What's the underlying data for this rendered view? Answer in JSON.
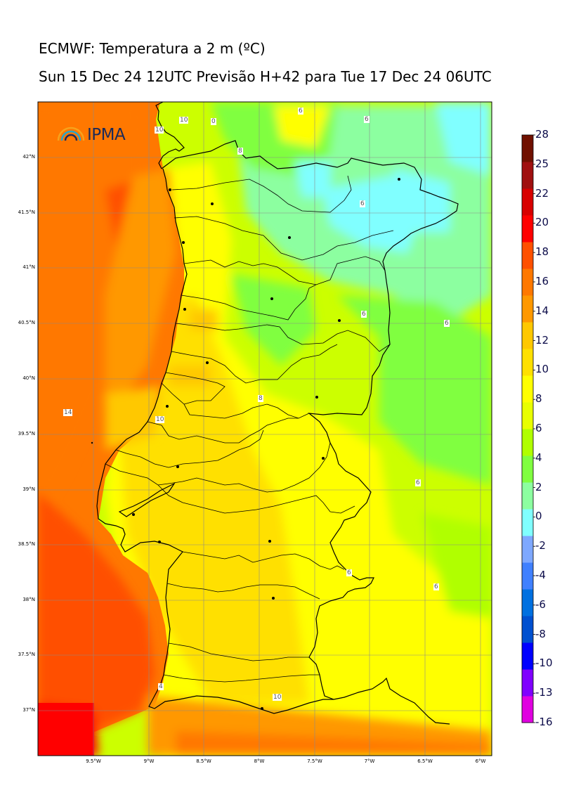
{
  "header": {
    "title": "ECMWF: Temperatura a 2 m (ºC)",
    "subtitle": "Sun 15 Dec 24 12UTC Previsão H+42 para Tue 17 Dec 24 06UTC"
  },
  "logo": {
    "text": "IPMA",
    "icon": "rainbow-arcs-icon"
  },
  "map": {
    "lat_labels": [
      "42°N",
      "41.5°N",
      "41°N",
      "40.5°N",
      "40°N",
      "39.5°N",
      "39°N",
      "38.5°N",
      "38°N",
      "37.5°N",
      "37°N"
    ],
    "lon_labels": [
      "9.5°W",
      "9°W",
      "8.5°W",
      "8°W",
      "7.5°W",
      "7°W",
      "6.5°W",
      "6°W"
    ],
    "contour_labels": [
      "6",
      "10",
      "14",
      "10",
      "0",
      "6",
      "6",
      "8",
      "6",
      "6",
      "6",
      "10",
      "8",
      "6",
      "6",
      "4",
      "10"
    ]
  },
  "colorbar": {
    "labels": [
      "28",
      "25",
      "22",
      "20",
      "18",
      "16",
      "14",
      "12",
      "10",
      "8",
      "6",
      "4",
      "2",
      "0",
      "-2",
      "-4",
      "-6",
      "-8",
      "-10",
      "-13",
      "-16"
    ],
    "colors": [
      "#e000e0",
      "#8000ff",
      "#0000ff",
      "#0050d0",
      "#0070e0",
      "#4080ff",
      "#7ea8ff",
      "#80ffff",
      "#8cffa0",
      "#80ff40",
      "#b0ff00",
      "#e8ff00",
      "#ffff00",
      "#ffe000",
      "#ffc800",
      "#ff9800",
      "#ff7800",
      "#ff5000",
      "#ff0000",
      "#d80000",
      "#a01010",
      "#701000"
    ]
  }
}
